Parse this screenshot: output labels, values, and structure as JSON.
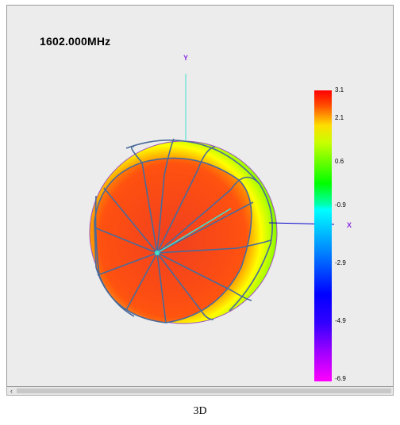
{
  "viewer": {
    "frequency": "1602.000MHz",
    "axes": {
      "y": "Y",
      "x": "X"
    }
  },
  "colorbar": {
    "ticks": [
      "3.1",
      "2.1",
      "0.6",
      "-0.9",
      "-2.9",
      "-4.9",
      "-6.9"
    ]
  },
  "colors": {
    "axis_y": "#40e0d0",
    "axis_x": "#0000cc",
    "mesh_line": "#4a6a9a",
    "hotspot": "#e83418",
    "rim": "#ffff00",
    "rim_outer": "#66ff00"
  },
  "scrollbar": {
    "left_arrow": "‹"
  },
  "caption": "3D"
}
